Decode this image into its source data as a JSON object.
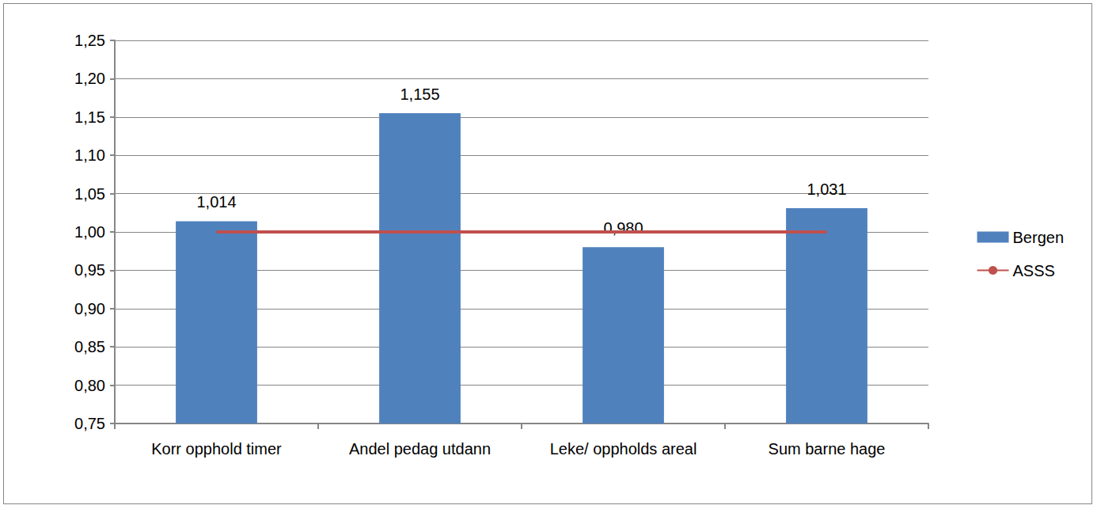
{
  "chart_data": {
    "type": "bar",
    "categories": [
      "Korr opphold timer",
      "Andel pedag utdann",
      "Leke/ oppholds areal",
      "Sum barne hage"
    ],
    "series": [
      {
        "name": "Bergen",
        "type": "bar",
        "color": "#4F81BD",
        "values": [
          1.014,
          1.155,
          0.98,
          1.031
        ],
        "value_labels": [
          "1,014",
          "1,155",
          "0,980",
          "1,031"
        ],
        "data_labels": true
      },
      {
        "name": "ASSS",
        "type": "line",
        "color": "#C0504D",
        "marker": "none",
        "line_style": "solid",
        "values": [
          1,
          1,
          1,
          1
        ]
      }
    ],
    "ylim": [
      0.75,
      1.25
    ],
    "yticks": [
      {
        "value": 0.75,
        "label": "0,75"
      },
      {
        "value": 0.8,
        "label": "0,80"
      },
      {
        "value": 0.85,
        "label": "0,85"
      },
      {
        "value": 0.9,
        "label": "0,90"
      },
      {
        "value": 0.95,
        "label": "0,95"
      },
      {
        "value": 1,
        "label": "1,00"
      },
      {
        "value": 1.05,
        "label": "1,05"
      },
      {
        "value": 1.1,
        "label": "1,10"
      },
      {
        "value": 1.15,
        "label": "1,15"
      },
      {
        "value": 1.2,
        "label": "1,20"
      },
      {
        "value": 1.25,
        "label": "1,25"
      }
    ],
    "grid": true,
    "legend": "right"
  }
}
